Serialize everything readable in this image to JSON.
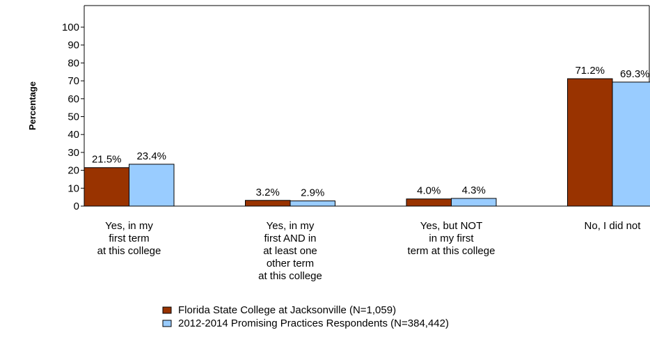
{
  "chart_data": {
    "type": "bar",
    "ylabel": "Percentage",
    "ylim": [
      0,
      100
    ],
    "yticks": [
      0,
      10,
      20,
      30,
      40,
      50,
      60,
      70,
      80,
      90,
      100
    ],
    "grid": false,
    "legend_position": "bottom-center",
    "categories": [
      [
        "Yes, in my",
        "first term",
        "at this college"
      ],
      [
        "Yes, in my",
        "first AND in",
        "at least one",
        "other term",
        "at this college"
      ],
      [
        "Yes, but NOT",
        "in my first",
        "term at this college"
      ],
      [
        "No, I did not"
      ]
    ],
    "series": [
      {
        "name": "Florida State College at Jacksonville (N=1,059)",
        "color": "#993300",
        "values": [
          21.5,
          3.2,
          4.0,
          71.2
        ],
        "labels": [
          "21.5%",
          "3.2%",
          "4.0%",
          "71.2%"
        ]
      },
      {
        "name": "2012-2014 Promising Practices Respondents (N=384,442)",
        "color": "#99ccff",
        "values": [
          23.4,
          2.9,
          4.3,
          69.3
        ],
        "labels": [
          "23.4%",
          "2.9%",
          "4.3%",
          "69.3%"
        ]
      }
    ]
  }
}
